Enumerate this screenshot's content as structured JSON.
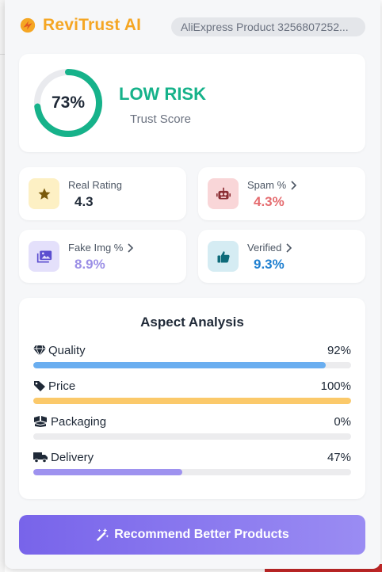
{
  "header": {
    "brand_name": "ReviTrust AI",
    "product_label": "AliExpress Product 3256807252...",
    "brand_color": "#f5a623"
  },
  "score": {
    "percent_text": "73%",
    "percent_value": 73,
    "risk_level": "LOW RISK",
    "label": "Trust Score",
    "gauge_color": "#16b28a"
  },
  "metrics": [
    {
      "label": "Real Rating",
      "value": "4.3",
      "icon": "star-icon",
      "has_chevron": false,
      "value_color": "#1f2937",
      "icon_bg": "#fdf0c4"
    },
    {
      "label": "Spam %",
      "value": "4.3%",
      "icon": "robot-icon",
      "has_chevron": true,
      "value_color": "#e56b6f",
      "icon_bg": "#f9d6d8"
    },
    {
      "label": "Fake Img %",
      "value": "8.9%",
      "icon": "image-icon",
      "has_chevron": true,
      "value_color": "#9b8fe6",
      "icon_bg": "#e4e0fb"
    },
    {
      "label": "Verified",
      "value": "9.3%",
      "icon": "thumbs-up-icon",
      "has_chevron": true,
      "value_color": "#1e7fd0",
      "icon_bg": "#d5ecf3"
    }
  ],
  "aspect": {
    "title": "Aspect Analysis",
    "items": [
      {
        "label": "Quality",
        "percent_text": "92%",
        "value": 0.92,
        "icon": "gem-icon",
        "color": "#6aaef0"
      },
      {
        "label": "Price",
        "percent_text": "100%",
        "value": 1.0,
        "icon": "tag-icon",
        "color": "#fbc96a"
      },
      {
        "label": "Packaging",
        "percent_text": "0%",
        "value": 0.0,
        "icon": "boxes-icon",
        "color": "#cfcfd4"
      },
      {
        "label": "Delivery",
        "percent_text": "47%",
        "value": 0.47,
        "icon": "truck-icon",
        "color": "#9e92ef"
      }
    ]
  },
  "recommend_button": {
    "label": "Recommend Better Products",
    "icon": "magic-wand-icon"
  }
}
